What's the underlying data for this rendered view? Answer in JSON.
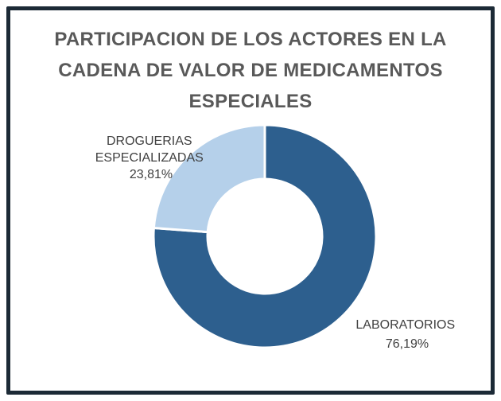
{
  "chart_data": {
    "type": "pie",
    "donut": true,
    "title_lines": [
      "PARTICIPACION DE LOS ACTORES EN LA",
      "CADENA DE VALOR DE MEDICAMENTOS",
      "ESPECIALES"
    ],
    "slices": [
      {
        "label": "LABORATORIOS",
        "value": 76.19,
        "value_text": "76,19%",
        "color": "#2d5f8e"
      },
      {
        "label": "DROGUERIAS ESPECIALIZADAS",
        "label_lines": [
          "DROGUERIAS",
          "ESPECIALIZADAS"
        ],
        "value": 23.81,
        "value_text": "23,81%",
        "color": "#b5d0ea"
      }
    ],
    "legend": "none"
  },
  "colors": {
    "frame": "#1c2a36",
    "title": "#595959",
    "label": "#404040",
    "separator": "#ffffff"
  }
}
